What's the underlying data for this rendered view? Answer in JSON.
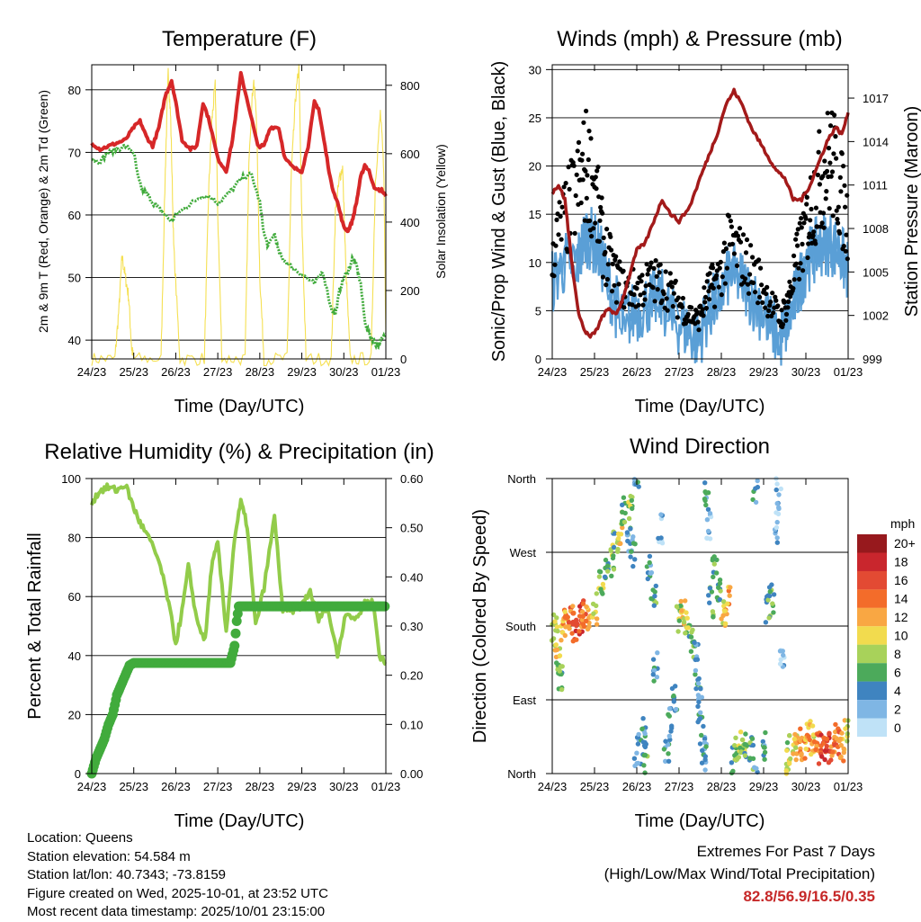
{
  "colors": {
    "red": "#d62728",
    "green": "#41ab3c",
    "lightgreen": "#92cc4a",
    "yellow": "#f5e052",
    "maroon": "#a31a1a",
    "blue": "#5a9fd6",
    "black": "#000000",
    "extremes": "#c62828"
  },
  "time_ticks": [
    "24/23",
    "25/23",
    "26/23",
    "27/23",
    "28/23",
    "29/23",
    "30/23",
    "01/23"
  ],
  "footer": {
    "location": "Location: Queens",
    "elevation": "Station elevation: 54.584 m",
    "latlon": "Station lat/lon: 40.7343; -73.8159",
    "created": "Figure created on Wed, 2025-10-01, at 23:52 UTC",
    "recent": "Most recent data timestamp: 2025/10/01 23:15:00"
  },
  "extremes": {
    "title": "Extremes For Past 7 Days",
    "subtitle": "(High/Low/Max Wind/Total Precipitation)",
    "values": "82.8/56.9/16.5/0.35"
  },
  "chart_data": [
    {
      "type": "line",
      "title": "Temperature (F)",
      "xlabel": "Time (Day/UTC)",
      "ylabel": "2m & 9m T (Red, Orange) & 2m Td (Green)",
      "ylabel_right": "Solar Insolation (Yellow)",
      "ylim": [
        37,
        84
      ],
      "ylim_right": [
        0,
        860
      ],
      "yticks": [
        "40",
        "50",
        "60",
        "70",
        "80"
      ],
      "yticks_right": [
        "0",
        "200",
        "400",
        "600",
        "800"
      ],
      "series": [
        {
          "name": "2m T",
          "axis": "left",
          "x": [
            0,
            0.2,
            0.4,
            0.6,
            0.8,
            1.0,
            1.15,
            1.3,
            1.45,
            1.6,
            1.75,
            1.9,
            2.0,
            2.15,
            2.35,
            2.5,
            2.65,
            2.8,
            3.0,
            3.2,
            3.35,
            3.55,
            3.75,
            3.95,
            4.1,
            4.25,
            4.45,
            4.6,
            4.8,
            5.0,
            5.15,
            5.3,
            5.4,
            5.55,
            5.7,
            5.85,
            6.0,
            6.1,
            6.2,
            6.3,
            6.4,
            6.5,
            6.6,
            6.75,
            6.9,
            7.0
          ],
          "y": [
            71.5,
            70.5,
            71,
            71.5,
            72,
            74,
            75,
            72.5,
            71,
            74,
            79,
            81.5,
            78,
            72,
            70.5,
            71,
            78,
            75,
            69,
            67,
            72,
            82.5,
            77,
            71,
            71,
            74,
            74,
            69,
            67.5,
            67,
            71,
            78,
            77,
            71,
            65,
            62,
            58,
            57.5,
            59,
            62,
            66,
            68,
            67,
            64,
            64,
            63
          ]
        },
        {
          "name": "2m Td",
          "axis": "left",
          "x": [
            0,
            0.2,
            0.4,
            0.6,
            0.8,
            1.0,
            1.1,
            1.2,
            1.3,
            1.45,
            1.6,
            1.75,
            1.9,
            2.0,
            2.2,
            2.4,
            2.6,
            2.8,
            3.0,
            3.2,
            3.4,
            3.6,
            3.8,
            4.0,
            4.1,
            4.2,
            4.35,
            4.45,
            4.55,
            4.7,
            4.9,
            5.1,
            5.3,
            5.5,
            5.7,
            5.8,
            5.9,
            6.0,
            6.1,
            6.2,
            6.3,
            6.4,
            6.5,
            6.6,
            6.7,
            6.8,
            6.9,
            7.0
          ],
          "y": [
            69,
            68.5,
            70,
            70.5,
            71,
            70,
            66,
            64,
            63.5,
            62,
            61,
            60,
            59,
            60,
            61,
            62,
            63,
            63,
            62,
            63,
            64.5,
            66,
            66.5,
            62,
            57,
            55,
            57,
            54,
            53,
            52,
            51,
            50,
            49,
            51,
            45,
            44,
            48,
            50,
            51,
            53,
            52,
            49,
            43,
            41,
            40,
            39,
            40,
            41
          ]
        },
        {
          "name": "Solar",
          "axis": "right",
          "x": [
            0,
            0.55,
            0.65,
            0.72,
            0.8,
            0.88,
            0.95,
            1.0,
            1.65,
            1.75,
            1.82,
            1.88,
            1.95,
            2.1,
            2.68,
            2.78,
            2.86,
            2.94,
            3.0,
            3.1,
            3.65,
            3.75,
            3.85,
            3.92,
            4.0,
            4.1,
            4.65,
            4.75,
            4.85,
            4.93,
            5.0,
            5.1,
            5.7,
            5.8,
            5.9,
            5.97,
            6.05,
            6.15,
            6.65,
            6.75,
            6.87,
            6.95,
            7.0
          ],
          "y": [
            0,
            0,
            150,
            300,
            240,
            180,
            30,
            0,
            0,
            550,
            840,
            700,
            330,
            0,
            0,
            480,
            700,
            800,
            420,
            0,
            0,
            620,
            820,
            710,
            240,
            0,
            0,
            540,
            760,
            850,
            410,
            0,
            0,
            430,
            530,
            560,
            260,
            0,
            0,
            520,
            720,
            560,
            80
          ]
        }
      ]
    },
    {
      "type": "line",
      "title": "Winds (mph) & Pressure (mb)",
      "xlabel": "Time (Day/UTC)",
      "ylabel": "Sonic/Prop Wind & Gust (Blue, Black)",
      "ylabel_right": "Station Pressure (Maroon)",
      "ylim": [
        0,
        30.5
      ],
      "ylim_right": [
        999,
        1019.3
      ],
      "yticks": [
        "0",
        "5",
        "10",
        "15",
        "20",
        "25",
        "30"
      ],
      "yticks_right": [
        "999",
        "1002",
        "1005",
        "1008",
        "1011",
        "1014",
        "1017"
      ],
      "series": [
        {
          "name": "Wind (Blue)",
          "axis": "left",
          "x": [
            0,
            0.3,
            0.6,
            0.8,
            1.0,
            1.2,
            1.45,
            1.7,
            2.0,
            2.3,
            2.6,
            2.9,
            3.2,
            3.45,
            3.7,
            3.9,
            4.2,
            4.5,
            4.8,
            5.1,
            5.4,
            5.6,
            5.8,
            6.0,
            6.2,
            6.4,
            6.6,
            6.8,
            7.0
          ],
          "y": [
            8,
            10,
            10,
            13,
            12,
            10,
            6,
            4,
            5,
            6,
            6,
            4,
            3,
            2,
            5,
            6,
            9,
            8,
            6,
            4,
            2,
            4,
            7,
            10,
            11,
            12,
            12,
            11,
            9
          ]
        },
        {
          "name": "Gust (Black)",
          "axis": "left",
          "x": [
            0,
            0.3,
            0.6,
            0.8,
            1.0,
            1.2,
            1.45,
            1.7,
            2.0,
            2.3,
            2.6,
            2.9,
            3.2,
            3.45,
            3.7,
            3.9,
            4.2,
            4.5,
            4.8,
            5.1,
            5.4,
            5.6,
            5.8,
            6.0,
            6.2,
            6.4,
            6.6,
            6.8,
            7.0
          ],
          "y": [
            14,
            18,
            22,
            25,
            22,
            15,
            11,
            9,
            9,
            10,
            10,
            8,
            6,
            5,
            9,
            10,
            15,
            13,
            11,
            8,
            5,
            8,
            13,
            17,
            21,
            24,
            26,
            22,
            17
          ]
        },
        {
          "name": "Pressure",
          "axis": "right",
          "x": [
            0,
            0.15,
            0.3,
            0.45,
            0.6,
            0.75,
            0.9,
            1.05,
            1.2,
            1.35,
            1.5,
            1.65,
            1.8,
            2.0,
            2.2,
            2.4,
            2.6,
            2.8,
            3.0,
            3.25,
            3.5,
            3.7,
            3.9,
            4.1,
            4.3,
            4.5,
            4.7,
            4.9,
            5.1,
            5.3,
            5.5,
            5.7,
            5.9,
            6.1,
            6.3,
            6.5,
            6.7,
            6.85,
            7.0
          ],
          "y": [
            1010.5,
            1011,
            1010,
            1006,
            1002.5,
            1001,
            1000.5,
            1001,
            1002,
            1002.5,
            1002,
            1003,
            1004.5,
            1006.5,
            1007,
            1008.5,
            1010,
            1009,
            1008.5,
            1009.5,
            1011.5,
            1013,
            1014.5,
            1016.5,
            1017.5,
            1016.5,
            1015,
            1014,
            1013,
            1012,
            1011.5,
            1010,
            1010,
            1011,
            1012.5,
            1014,
            1015,
            1014.5,
            1016
          ]
        }
      ]
    },
    {
      "type": "line",
      "title": "Relative Humidity (%) & Precipitation (in)",
      "xlabel": "Time (Day/UTC)",
      "ylabel": "Percent & Total Rainfall",
      "ylim": [
        0,
        100
      ],
      "ylim_right": [
        0,
        0.6
      ],
      "yticks": [
        "0",
        "20",
        "40",
        "60",
        "80",
        "100"
      ],
      "yticks_right": [
        "0.00",
        "0.10",
        "0.20",
        "0.30",
        "0.40",
        "0.50",
        "0.60"
      ],
      "series": [
        {
          "name": "Relative Humidity",
          "axis": "left",
          "x": [
            0,
            0.2,
            0.4,
            0.6,
            0.8,
            1.0,
            1.15,
            1.35,
            1.6,
            1.8,
            2.0,
            2.15,
            2.3,
            2.5,
            2.7,
            2.85,
            3.0,
            3.2,
            3.4,
            3.55,
            3.7,
            3.9,
            4.1,
            4.35,
            4.55,
            4.75,
            5.0,
            5.2,
            5.4,
            5.6,
            5.85,
            6.05,
            6.3,
            6.5,
            6.7,
            6.85,
            7.0
          ],
          "y": [
            92,
            96,
            97,
            96,
            98,
            90,
            85,
            80,
            72,
            60,
            44,
            55,
            70,
            52,
            45,
            70,
            78,
            48,
            80,
            92,
            84,
            50,
            63,
            87,
            55,
            55,
            57,
            62,
            52,
            57,
            40,
            55,
            52,
            58,
            58,
            40,
            37
          ]
        },
        {
          "name": "Total Precipitation",
          "axis": "right",
          "x": [
            0,
            0.1,
            0.2,
            0.3,
            0.4,
            0.5,
            0.6,
            0.7,
            0.8,
            0.9,
            1.0,
            3.3,
            3.4,
            3.45,
            3.5,
            7.0
          ],
          "y": [
            0,
            0.03,
            0.05,
            0.07,
            0.1,
            0.12,
            0.16,
            0.18,
            0.2,
            0.22,
            0.225,
            0.225,
            0.26,
            0.31,
            0.34,
            0.34
          ]
        }
      ]
    },
    {
      "type": "scatter",
      "title": "Wind Direction",
      "xlabel": "Time (Day/UTC)",
      "ylabel": "Direction (Colored By Speed)",
      "ylim": [
        0,
        360
      ],
      "yticks": [
        "North",
        "East",
        "South",
        "West",
        "North"
      ],
      "colorbar_title": "mph",
      "colorbar_labels": [
        "20+",
        "18",
        "16",
        "14",
        "12",
        "10",
        "8",
        "6",
        "4",
        "2",
        "0"
      ],
      "colorbar_colors": [
        "#97191d",
        "#c9262d",
        "#e34a33",
        "#f36c2a",
        "#f9a743",
        "#f2db4e",
        "#a8d25a",
        "#4caa5b",
        "#3f84c0",
        "#7fb6e4",
        "#bfe2f7"
      ],
      "points": [
        {
          "x": 0.05,
          "y": 180,
          "s": 8
        },
        {
          "x": 0.12,
          "y": 160,
          "s": 10
        },
        {
          "x": 0.15,
          "y": 140,
          "s": 8
        },
        {
          "x": 0.2,
          "y": 120,
          "s": 6
        },
        {
          "x": 0.25,
          "y": 175,
          "s": 12
        },
        {
          "x": 0.35,
          "y": 190,
          "s": 12
        },
        {
          "x": 0.45,
          "y": 185,
          "s": 14
        },
        {
          "x": 0.55,
          "y": 180,
          "s": 16
        },
        {
          "x": 0.65,
          "y": 190,
          "s": 16
        },
        {
          "x": 0.75,
          "y": 195,
          "s": 14
        },
        {
          "x": 0.85,
          "y": 185,
          "s": 12
        },
        {
          "x": 1.0,
          "y": 200,
          "s": 10
        },
        {
          "x": 1.15,
          "y": 235,
          "s": 8
        },
        {
          "x": 1.3,
          "y": 255,
          "s": 6
        },
        {
          "x": 1.4,
          "y": 260,
          "s": 8
        },
        {
          "x": 1.5,
          "y": 280,
          "s": 6
        },
        {
          "x": 1.6,
          "y": 300,
          "s": 10
        },
        {
          "x": 1.7,
          "y": 320,
          "s": 6
        },
        {
          "x": 1.8,
          "y": 285,
          "s": 4
        },
        {
          "x": 1.85,
          "y": 330,
          "s": 8
        },
        {
          "x": 1.9,
          "y": 270,
          "s": 4
        },
        {
          "x": 2.0,
          "y": 10,
          "s": 4
        },
        {
          "x": 2.05,
          "y": 30,
          "s": 4
        },
        {
          "x": 2.15,
          "y": 50,
          "s": 4
        },
        {
          "x": 2.2,
          "y": 20,
          "s": 6
        },
        {
          "x": 2.3,
          "y": 250,
          "s": 4
        },
        {
          "x": 2.4,
          "y": 220,
          "s": 6
        },
        {
          "x": 2.45,
          "y": 130,
          "s": 4
        },
        {
          "x": 2.55,
          "y": 300,
          "s": 2
        },
        {
          "x": 2.7,
          "y": 20,
          "s": 4
        },
        {
          "x": 2.8,
          "y": 60,
          "s": 4
        },
        {
          "x": 2.9,
          "y": 90,
          "s": 4
        },
        {
          "x": 3.0,
          "y": 190,
          "s": 8
        },
        {
          "x": 3.1,
          "y": 195,
          "s": 10
        },
        {
          "x": 3.2,
          "y": 180,
          "s": 8
        },
        {
          "x": 3.3,
          "y": 160,
          "s": 6
        },
        {
          "x": 3.4,
          "y": 140,
          "s": 4
        },
        {
          "x": 3.45,
          "y": 100,
          "s": 4
        },
        {
          "x": 3.5,
          "y": 80,
          "s": 4
        },
        {
          "x": 3.55,
          "y": 40,
          "s": 4
        },
        {
          "x": 3.6,
          "y": 20,
          "s": 4
        },
        {
          "x": 3.65,
          "y": 340,
          "s": 4
        },
        {
          "x": 3.7,
          "y": 300,
          "s": 2
        },
        {
          "x": 3.75,
          "y": 210,
          "s": 6
        },
        {
          "x": 3.85,
          "y": 255,
          "s": 6
        },
        {
          "x": 3.95,
          "y": 225,
          "s": 6
        },
        {
          "x": 4.05,
          "y": 200,
          "s": 10
        },
        {
          "x": 4.15,
          "y": 210,
          "s": 12
        },
        {
          "x": 4.3,
          "y": 20,
          "s": 6
        },
        {
          "x": 4.4,
          "y": 30,
          "s": 8
        },
        {
          "x": 4.5,
          "y": 35,
          "s": 8
        },
        {
          "x": 4.6,
          "y": 40,
          "s": 6
        },
        {
          "x": 4.7,
          "y": 25,
          "s": 6
        },
        {
          "x": 4.8,
          "y": 350,
          "s": 4
        },
        {
          "x": 5.0,
          "y": 30,
          "s": 4
        },
        {
          "x": 5.1,
          "y": 200,
          "s": 6
        },
        {
          "x": 5.2,
          "y": 215,
          "s": 6
        },
        {
          "x": 5.3,
          "y": 300,
          "s": 2
        },
        {
          "x": 5.35,
          "y": 340,
          "s": 2
        },
        {
          "x": 5.45,
          "y": 150,
          "s": 2
        },
        {
          "x": 5.55,
          "y": 20,
          "s": 8
        },
        {
          "x": 5.65,
          "y": 30,
          "s": 10
        },
        {
          "x": 5.75,
          "y": 35,
          "s": 10
        },
        {
          "x": 5.85,
          "y": 40,
          "s": 12
        },
        {
          "x": 5.95,
          "y": 35,
          "s": 12
        },
        {
          "x": 6.05,
          "y": 45,
          "s": 12
        },
        {
          "x": 6.15,
          "y": 40,
          "s": 10
        },
        {
          "x": 6.25,
          "y": 35,
          "s": 14
        },
        {
          "x": 6.35,
          "y": 30,
          "s": 16
        },
        {
          "x": 6.45,
          "y": 35,
          "s": 16
        },
        {
          "x": 6.55,
          "y": 30,
          "s": 16
        },
        {
          "x": 6.65,
          "y": 40,
          "s": 14
        },
        {
          "x": 6.75,
          "y": 35,
          "s": 14
        },
        {
          "x": 6.85,
          "y": 30,
          "s": 12
        },
        {
          "x": 6.95,
          "y": 45,
          "s": 10
        }
      ]
    }
  ]
}
